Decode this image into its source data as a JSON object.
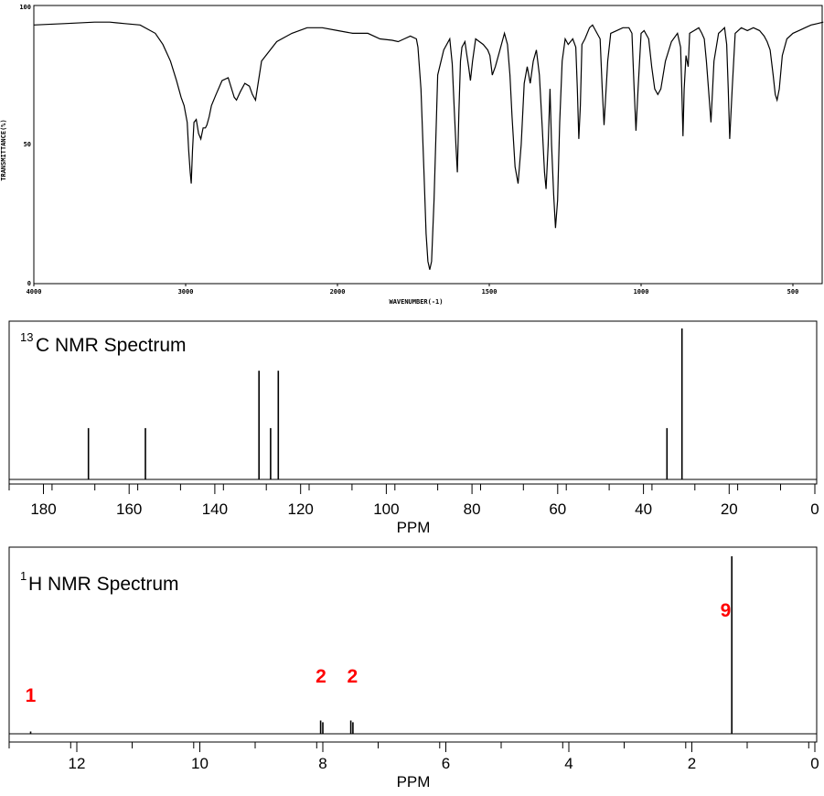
{
  "chart_data": [
    {
      "type": "line",
      "ylabel": "TRANSMITTANCE(%)",
      "xlabel": "WAVENUMBER(-1)",
      "x_ticks": [
        "4000",
        "3000",
        "2000",
        "1500",
        "1000",
        "500"
      ],
      "y_ticks": [
        "100",
        "50",
        "0"
      ],
      "xlim": [
        4000,
        400
      ],
      "ylim": [
        0,
        100
      ],
      "series": [
        {
          "x": [
            4000,
            3800,
            3600,
            3500,
            3400,
            3300,
            3200,
            3150,
            3100,
            3060,
            3030,
            3010,
            2990,
            2980,
            2970,
            2963,
            2955,
            2945,
            2930,
            2915,
            2900,
            2885,
            2870,
            2860,
            2845,
            2830,
            2800,
            2760,
            2720,
            2680,
            2665,
            2640,
            2610,
            2580,
            2560,
            2540,
            2500,
            2400,
            2300,
            2200,
            2100,
            2000,
            1950,
            1900,
            1860,
            1820,
            1800,
            1780,
            1760,
            1740,
            1735,
            1725,
            1715,
            1708,
            1702,
            1696,
            1690,
            1682,
            1670,
            1650,
            1630,
            1622,
            1615,
            1610,
            1605,
            1600,
            1595,
            1590,
            1580,
            1575,
            1568,
            1562,
            1555,
            1545,
            1520,
            1505,
            1498,
            1490,
            1480,
            1470,
            1450,
            1440,
            1432,
            1425,
            1415,
            1405,
            1395,
            1385,
            1375,
            1365,
            1355,
            1345,
            1335,
            1325,
            1318,
            1313,
            1306,
            1300,
            1295,
            1288,
            1282,
            1275,
            1268,
            1260,
            1250,
            1240,
            1225,
            1215,
            1210,
            1205,
            1200,
            1195,
            1185,
            1170,
            1160,
            1150,
            1135,
            1128,
            1122,
            1110,
            1100,
            1080,
            1060,
            1040,
            1030,
            1023,
            1017,
            1010,
            1000,
            990,
            975,
            965,
            955,
            945,
            935,
            920,
            900,
            880,
            870,
            866,
            862,
            858,
            852,
            845,
            840,
            825,
            810,
            800,
            792,
            785,
            778,
            770,
            760,
            745,
            735,
            725,
            718,
            713,
            708,
            700,
            690,
            670,
            650,
            630,
            610,
            595,
            585,
            575,
            565,
            558,
            552,
            545,
            535,
            520,
            500,
            480,
            460,
            440,
            420,
            400
          ],
          "values": [
            93,
            93.5,
            94,
            94,
            93.5,
            93,
            90,
            86,
            80,
            73,
            67,
            64,
            58,
            48,
            40,
            36,
            48,
            58,
            59,
            54,
            52,
            56,
            56,
            57,
            60,
            64,
            68,
            73,
            74,
            67,
            66,
            69,
            72,
            71,
            68,
            66,
            80,
            87,
            90,
            92,
            92,
            91,
            90,
            90,
            88,
            87.5,
            87,
            88,
            89,
            88,
            85,
            70,
            40,
            18,
            8,
            5,
            8,
            30,
            75,
            84,
            88,
            79,
            62,
            50,
            40,
            62,
            80,
            85,
            87,
            83,
            78,
            73,
            80,
            88,
            86,
            84,
            82,
            75,
            78,
            82,
            90,
            86,
            75,
            60,
            42,
            36,
            50,
            72,
            78,
            72,
            80,
            84,
            75,
            55,
            40,
            34,
            50,
            70,
            50,
            32,
            20,
            30,
            58,
            80,
            88,
            86,
            88,
            85,
            70,
            52,
            64,
            86,
            88,
            92,
            93,
            91,
            88,
            70,
            57,
            80,
            90,
            91,
            92,
            92,
            90,
            70,
            55,
            70,
            90,
            91,
            88,
            78,
            70,
            68,
            70,
            80,
            87,
            90,
            85,
            70,
            53,
            70,
            82,
            78,
            90,
            91,
            92,
            90,
            88,
            80,
            70,
            58,
            80,
            90,
            91,
            92,
            86,
            70,
            52,
            70,
            90,
            92,
            91,
            92,
            91,
            89,
            87,
            84,
            75,
            68,
            66,
            70,
            82,
            88,
            90,
            91,
            92,
            93,
            93.5,
            94
          ]
        }
      ]
    },
    {
      "type": "bar",
      "title": "C NMR Spectrum",
      "title_sup": "13",
      "xlabel": "PPM",
      "x_ticks": [
        "180",
        "160",
        "140",
        "120",
        "100",
        "80",
        "60",
        "40",
        "20",
        "0"
      ],
      "xlim": [
        188,
        0
      ],
      "peaks": [
        {
          "ppm": 169.5,
          "height": 0.34
        },
        {
          "ppm": 156.2,
          "height": 0.34
        },
        {
          "ppm": 129.7,
          "height": 0.72
        },
        {
          "ppm": 127.0,
          "height": 0.34
        },
        {
          "ppm": 125.2,
          "height": 0.72
        },
        {
          "ppm": 34.5,
          "height": 0.34
        },
        {
          "ppm": 31.0,
          "height": 1.0
        }
      ]
    },
    {
      "type": "bar",
      "title": "H NMR Spectrum",
      "title_sup": "1",
      "xlabel": "PPM",
      "x_ticks": [
        "12",
        "10",
        "8",
        "6",
        "4",
        "2",
        "0"
      ],
      "xlim": [
        13.1,
        0
      ],
      "peaks": [
        {
          "ppm": 12.75,
          "height": 0.013
        },
        {
          "ppm": 8.035,
          "height": 0.075
        },
        {
          "ppm": 8.0,
          "height": 0.065
        },
        {
          "ppm": 7.545,
          "height": 0.075
        },
        {
          "ppm": 7.51,
          "height": 0.065
        },
        {
          "ppm": 1.35,
          "height": 1.0
        }
      ],
      "integrations": [
        {
          "label": "1",
          "ppm": 12.75,
          "color": "#ff0000"
        },
        {
          "label": "2",
          "ppm": 8.03,
          "color": "#ff0000"
        },
        {
          "label": "2",
          "ppm": 7.52,
          "color": "#ff0000"
        },
        {
          "label": "9",
          "ppm": 1.45,
          "color": "#ff0000"
        }
      ]
    }
  ]
}
